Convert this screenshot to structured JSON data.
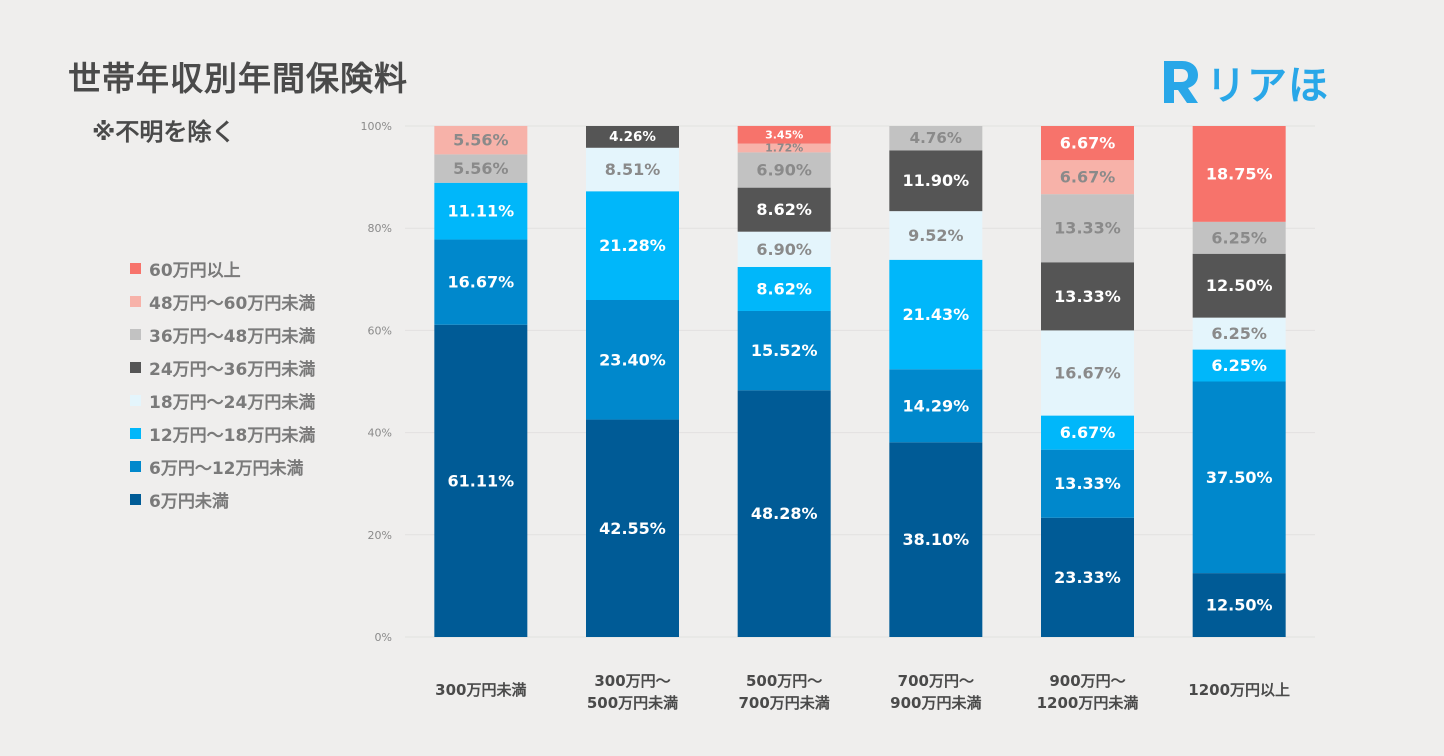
{
  "title": "世帯年収別年間保険料",
  "subtitle": "※不明を除く",
  "logo": {
    "text": "リアほ",
    "mark": "R",
    "color": "#29a7e8"
  },
  "chart_data": {
    "type": "bar",
    "stacked": true,
    "percent_stacked": true,
    "title": "世帯年収別年間保険料",
    "xlabel": "",
    "ylabel": "",
    "ylim": [
      0,
      100
    ],
    "y_ticks": [
      "0%",
      "20%",
      "40%",
      "60%",
      "80%",
      "100%"
    ],
    "grid": true,
    "legend_position": "left",
    "categories": [
      [
        "300万円未満"
      ],
      [
        "300万円〜",
        "500万円未満"
      ],
      [
        "500万円〜",
        "700万円未満"
      ],
      [
        "700万円〜",
        "900万円未満"
      ],
      [
        "900万円〜",
        "1200万円未満"
      ],
      [
        "1200万円以上"
      ]
    ],
    "series": [
      {
        "name": "6万円未満",
        "color": "#005b96",
        "label_color": "#ffffff",
        "values": [
          61.11,
          42.55,
          48.28,
          38.1,
          23.33,
          12.5
        ],
        "labels": [
          "61.11%",
          "42.55%",
          "48.28%",
          "38.10%",
          "23.33%",
          "12.50%"
        ]
      },
      {
        "name": "6万円〜12万円未満",
        "color": "#0088cc",
        "label_color": "#ffffff",
        "values": [
          16.67,
          23.4,
          15.52,
          14.29,
          13.33,
          37.5
        ],
        "labels": [
          "16.67%",
          "23.40%",
          "15.52%",
          "14.29%",
          "13.33%",
          "37.50%"
        ]
      },
      {
        "name": "12万円〜18万円未満",
        "color": "#00b7fa",
        "label_color": "#ffffff",
        "values": [
          11.11,
          21.28,
          8.62,
          21.43,
          6.67,
          6.25
        ],
        "labels": [
          "11.11%",
          "21.28%",
          "8.62%",
          "21.43%",
          "6.67%",
          "6.25%"
        ]
      },
      {
        "name": "18万円〜24万円未満",
        "color": "#e4f5fc",
        "label_color": "#8a8a8a",
        "values": [
          0,
          8.51,
          6.9,
          9.52,
          16.67,
          6.25
        ],
        "labels": [
          "",
          "8.51%",
          "6.90%",
          "9.52%",
          "16.67%",
          "6.25%"
        ]
      },
      {
        "name": "24万円〜36万円未満",
        "color": "#555555",
        "label_color": "#ffffff",
        "values": [
          0,
          4.26,
          8.62,
          11.9,
          13.33,
          12.5
        ],
        "labels": [
          "",
          "4.26%",
          "8.62%",
          "11.90%",
          "13.33%",
          "12.50%"
        ]
      },
      {
        "name": "36万円〜48万円未満",
        "color": "#c2c2c2",
        "label_color": "#8a8a8a",
        "values": [
          5.56,
          0,
          6.9,
          4.76,
          13.33,
          6.25
        ],
        "labels": [
          "5.56%",
          "",
          "6.90%",
          "4.76%",
          "13.33%",
          "6.25%"
        ]
      },
      {
        "name": "48万円〜60万円未満",
        "color": "#f7b2a9",
        "label_color": "#8a8a8a",
        "values": [
          5.56,
          0,
          1.72,
          0,
          6.67,
          0
        ],
        "labels": [
          "5.56%",
          "",
          "1.72%",
          "",
          "6.67%",
          ""
        ]
      },
      {
        "name": "60万円以上",
        "color": "#f7736b",
        "label_color": "#ffffff",
        "values": [
          0,
          0,
          3.45,
          0,
          6.67,
          18.75
        ],
        "labels": [
          "",
          "",
          "3.45%",
          "",
          "6.67%",
          "18.75%"
        ]
      }
    ]
  }
}
